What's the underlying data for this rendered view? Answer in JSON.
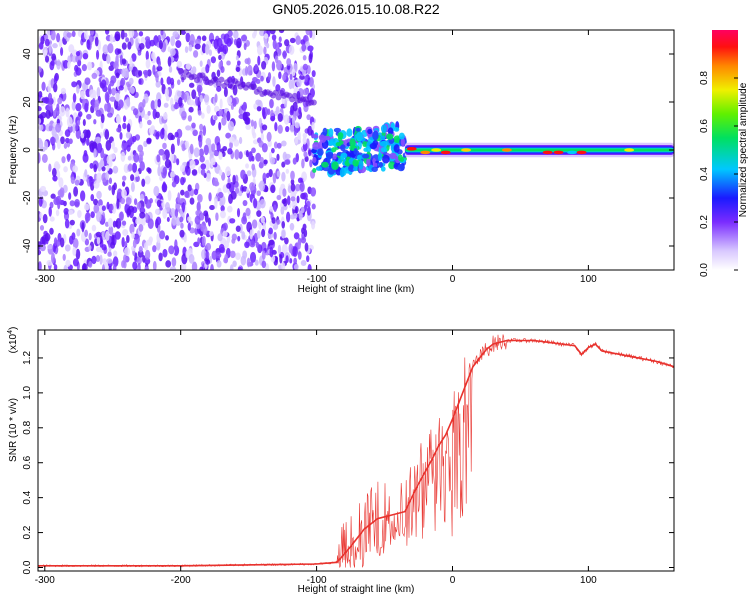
{
  "title": "GN05.2026.015.10.08.R22",
  "chart_data": [
    {
      "type": "heatmap",
      "xlabel": "Height of straight line (km)",
      "ylabel": "Frequency (Hz)",
      "xlim": [
        -305,
        163
      ],
      "ylim": [
        -50,
        50
      ],
      "xticks": [
        -300,
        -200,
        -100,
        0,
        100
      ],
      "xtick_labels": [
        "-300",
        "-200",
        "-100",
        "0",
        "100"
      ],
      "yticks": [
        -40,
        -20,
        0,
        20,
        40
      ],
      "ytick_labels": [
        "-40",
        "-20",
        "0",
        "20",
        "40"
      ],
      "colorbar": {
        "label": "Normalized spectral amplitude",
        "range": [
          0,
          1
        ],
        "ticks": [
          0.0,
          0.2,
          0.4,
          0.6,
          0.8
        ],
        "tick_labels": [
          "0.0",
          "0.2",
          "0.4",
          "0.6",
          "0.8"
        ]
      },
      "regions": [
        {
          "x_range": [
            -305,
            -102
          ],
          "frequency_hz": "broadband noise -50 to 50",
          "amplitude": "0.1 to 0.25"
        },
        {
          "x_range": [
            -200,
            -100
          ],
          "frequency_hz": "faint trace from 32 down to 20",
          "amplitude": "0.15 to 0.2"
        },
        {
          "x_range": [
            -102,
            -35
          ],
          "frequency_hz": "-10 to 10",
          "amplitude": "0.2 to 0.5"
        },
        {
          "x_range": [
            -35,
            163
          ],
          "frequency_hz": "-3 to 3 (band centered near 0)",
          "amplitude": "0.5 to 1.0"
        }
      ]
    },
    {
      "type": "line",
      "xlabel": "Height of straight line (km)",
      "ylabel": "SNR (10 * v/v)",
      "ylabel_multiplier": "(x10",
      "ylabel_multiplier_exp": "4",
      "ylabel_multiplier_close": ")",
      "xlim": [
        -305,
        163
      ],
      "ylim": [
        -0.02,
        1.36
      ],
      "xticks": [
        -300,
        -200,
        -100,
        0,
        100
      ],
      "xtick_labels": [
        "-300",
        "-200",
        "-100",
        "0",
        "100"
      ],
      "yticks": [
        0.0,
        0.2,
        0.4,
        0.6,
        0.8,
        1.0,
        1.2
      ],
      "ytick_labels": [
        "0.0",
        "0.2",
        "0.4",
        "0.6",
        "0.8",
        "1.0",
        "1.2"
      ],
      "color": "#e8322d",
      "x": [
        -305,
        -200,
        -100,
        -85,
        -75,
        -65,
        -55,
        -45,
        -35,
        -30,
        -25,
        -20,
        -15,
        -10,
        -5,
        0,
        5,
        10,
        15,
        20,
        25,
        30,
        40,
        60,
        80,
        90,
        95,
        100,
        105,
        110,
        130,
        150,
        163
      ],
      "y": [
        0.01,
        0.01,
        0.02,
        0.03,
        0.12,
        0.22,
        0.28,
        0.3,
        0.32,
        0.4,
        0.48,
        0.55,
        0.62,
        0.7,
        0.76,
        0.85,
        0.95,
        1.05,
        1.15,
        1.2,
        1.25,
        1.28,
        1.3,
        1.3,
        1.28,
        1.27,
        1.22,
        1.26,
        1.28,
        1.24,
        1.21,
        1.18,
        1.15
      ]
    }
  ]
}
